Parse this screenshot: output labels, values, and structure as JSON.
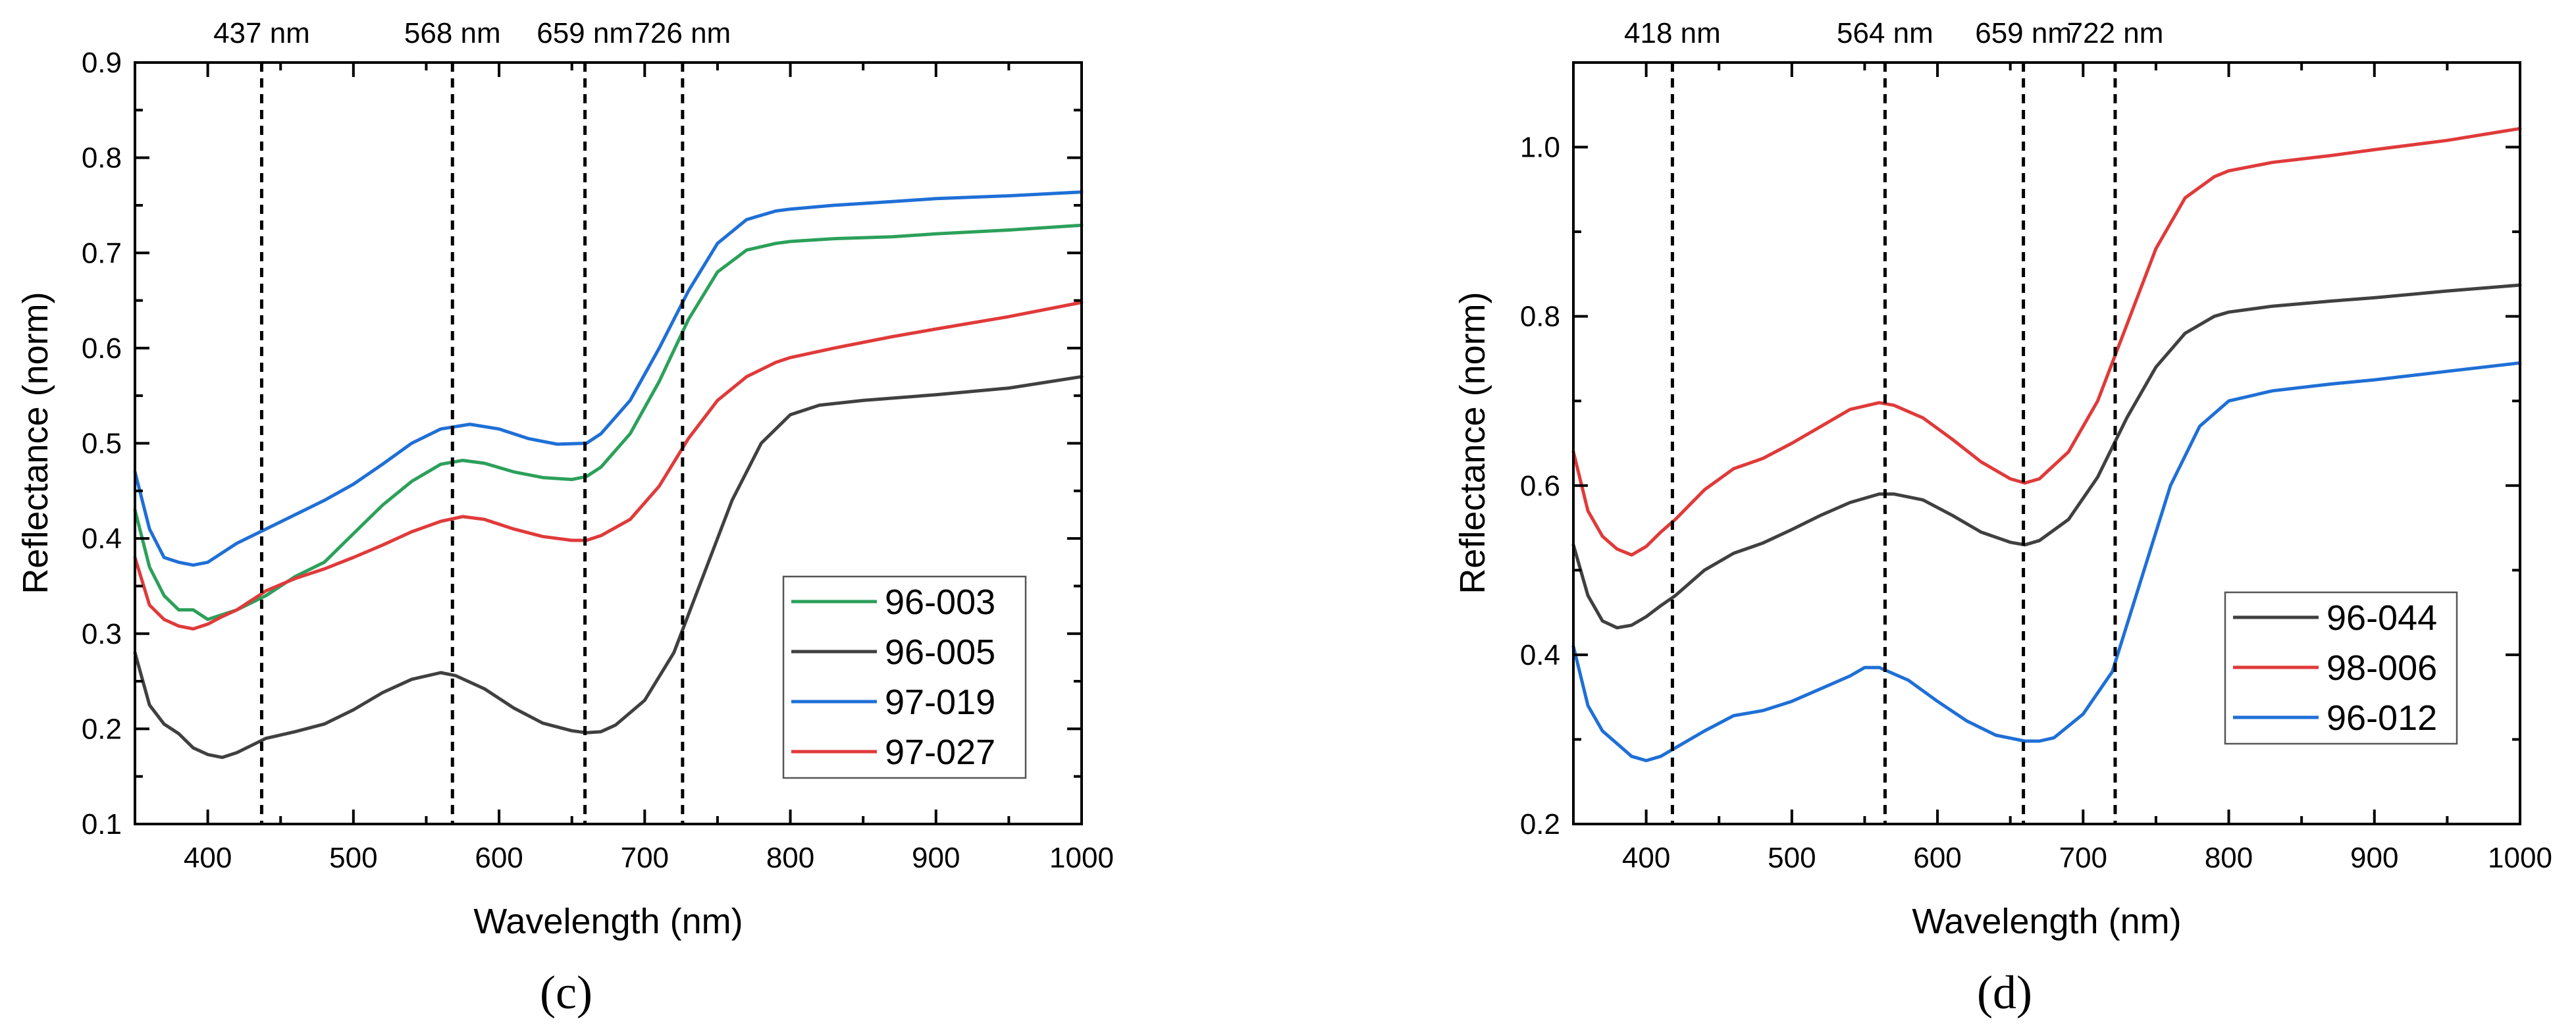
{
  "chart_data": [
    {
      "type": "line",
      "panel_label": "(c)",
      "xlabel": "Wavelength (nm)",
      "ylabel": "Reflectance (norm)",
      "xlim": [
        350,
        1000
      ],
      "ylim": [
        0.1,
        0.9
      ],
      "xticks": [
        400,
        500,
        600,
        700,
        800,
        900,
        1000
      ],
      "yticks": [
        0.1,
        0.2,
        0.3,
        0.4,
        0.5,
        0.6,
        0.7,
        0.8,
        0.9
      ],
      "ytick_labels": [
        "0.1",
        "0.2",
        "0.3",
        "0.4",
        "0.5",
        "0.6",
        "0.7",
        "0.8",
        "0.9"
      ],
      "legend_position": "bottom-right",
      "vertical_markers": [
        {
          "x": 437,
          "label": "437 nm"
        },
        {
          "x": 568,
          "label": "568 nm"
        },
        {
          "x": 659,
          "label": "659 nm"
        },
        {
          "x": 726,
          "label": "726 nm"
        }
      ],
      "series": [
        {
          "name": "96-003",
          "color": "#2ca05a",
          "x": [
            350,
            360,
            370,
            380,
            390,
            400,
            420,
            440,
            460,
            480,
            500,
            520,
            540,
            560,
            575,
            590,
            610,
            630,
            650,
            660,
            670,
            690,
            710,
            730,
            750,
            770,
            790,
            800,
            830,
            870,
            900,
            950,
            1000
          ],
          "y": [
            0.43,
            0.37,
            0.34,
            0.325,
            0.325,
            0.315,
            0.325,
            0.34,
            0.36,
            0.375,
            0.405,
            0.435,
            0.46,
            0.478,
            0.482,
            0.479,
            0.47,
            0.464,
            0.462,
            0.465,
            0.475,
            0.51,
            0.565,
            0.63,
            0.68,
            0.703,
            0.71,
            0.712,
            0.715,
            0.717,
            0.72,
            0.724,
            0.729
          ]
        },
        {
          "name": "96-005",
          "color": "#404040",
          "x": [
            350,
            360,
            370,
            380,
            390,
            400,
            410,
            420,
            440,
            460,
            480,
            500,
            520,
            540,
            560,
            570,
            590,
            610,
            630,
            650,
            660,
            670,
            680,
            700,
            720,
            740,
            760,
            780,
            800,
            820,
            850,
            900,
            950,
            1000
          ],
          "y": [
            0.28,
            0.225,
            0.205,
            0.195,
            0.18,
            0.173,
            0.17,
            0.175,
            0.19,
            0.197,
            0.205,
            0.22,
            0.238,
            0.252,
            0.259,
            0.256,
            0.242,
            0.222,
            0.206,
            0.198,
            0.196,
            0.197,
            0.204,
            0.23,
            0.28,
            0.36,
            0.44,
            0.5,
            0.53,
            0.54,
            0.545,
            0.551,
            0.558,
            0.57
          ]
        },
        {
          "name": "97-019",
          "color": "#1f6fd6",
          "x": [
            350,
            360,
            370,
            380,
            390,
            400,
            410,
            420,
            440,
            460,
            480,
            500,
            520,
            540,
            560,
            580,
            600,
            620,
            640,
            660,
            670,
            690,
            710,
            730,
            750,
            770,
            790,
            800,
            830,
            870,
            900,
            950,
            1000
          ],
          "y": [
            0.47,
            0.41,
            0.38,
            0.375,
            0.372,
            0.375,
            0.385,
            0.395,
            0.41,
            0.425,
            0.44,
            0.457,
            0.478,
            0.5,
            0.515,
            0.52,
            0.515,
            0.505,
            0.499,
            0.5,
            0.51,
            0.545,
            0.6,
            0.66,
            0.71,
            0.735,
            0.744,
            0.746,
            0.75,
            0.754,
            0.757,
            0.76,
            0.764
          ]
        },
        {
          "name": "97-027",
          "color": "#e03a3a",
          "x": [
            350,
            360,
            370,
            380,
            390,
            400,
            410,
            420,
            440,
            460,
            480,
            500,
            520,
            540,
            560,
            575,
            590,
            610,
            630,
            650,
            660,
            670,
            690,
            710,
            730,
            750,
            770,
            790,
            800,
            830,
            870,
            900,
            950,
            1000
          ],
          "y": [
            0.38,
            0.33,
            0.315,
            0.308,
            0.305,
            0.31,
            0.318,
            0.325,
            0.345,
            0.358,
            0.368,
            0.38,
            0.393,
            0.407,
            0.418,
            0.423,
            0.42,
            0.41,
            0.402,
            0.398,
            0.398,
            0.403,
            0.42,
            0.455,
            0.505,
            0.545,
            0.57,
            0.585,
            0.59,
            0.6,
            0.612,
            0.62,
            0.633,
            0.648
          ]
        }
      ]
    },
    {
      "type": "line",
      "panel_label": "(d)",
      "xlabel": "Wavelength (nm)",
      "ylabel": "Reflectance (norm)",
      "xlim": [
        350,
        1000
      ],
      "ylim": [
        0.2,
        1.1
      ],
      "xticks": [
        400,
        500,
        600,
        700,
        800,
        900,
        1000
      ],
      "yticks": [
        0.2,
        0.4,
        0.6,
        0.8,
        1.0
      ],
      "ytick_labels": [
        "0.2",
        "0.4",
        "0.6",
        "0.8",
        "1.0"
      ],
      "legend_position": "center-right",
      "vertical_markers": [
        {
          "x": 418,
          "label": "418 nm"
        },
        {
          "x": 564,
          "label": "564 nm"
        },
        {
          "x": 659,
          "label": "659 nm"
        },
        {
          "x": 722,
          "label": "722 nm"
        }
      ],
      "series": [
        {
          "name": "96-044",
          "color": "#404040",
          "x": [
            350,
            360,
            370,
            380,
            390,
            400,
            410,
            420,
            440,
            460,
            480,
            500,
            520,
            540,
            560,
            570,
            590,
            610,
            630,
            650,
            660,
            670,
            690,
            710,
            730,
            750,
            770,
            790,
            800,
            830,
            870,
            900,
            950,
            1000
          ],
          "y": [
            0.53,
            0.47,
            0.44,
            0.432,
            0.435,
            0.445,
            0.458,
            0.47,
            0.5,
            0.52,
            0.532,
            0.548,
            0.565,
            0.58,
            0.59,
            0.59,
            0.583,
            0.565,
            0.545,
            0.533,
            0.53,
            0.535,
            0.56,
            0.61,
            0.68,
            0.74,
            0.78,
            0.8,
            0.805,
            0.812,
            0.818,
            0.822,
            0.83,
            0.837
          ]
        },
        {
          "name": "98-006",
          "color": "#e03a3a",
          "x": [
            350,
            360,
            370,
            380,
            390,
            400,
            410,
            420,
            440,
            460,
            480,
            500,
            520,
            540,
            560,
            570,
            590,
            610,
            630,
            650,
            660,
            670,
            690,
            710,
            730,
            750,
            770,
            790,
            800,
            830,
            870,
            900,
            950,
            1000
          ],
          "y": [
            0.64,
            0.57,
            0.54,
            0.525,
            0.518,
            0.528,
            0.545,
            0.56,
            0.595,
            0.62,
            0.632,
            0.65,
            0.67,
            0.69,
            0.698,
            0.695,
            0.68,
            0.655,
            0.628,
            0.608,
            0.603,
            0.608,
            0.64,
            0.7,
            0.79,
            0.88,
            0.94,
            0.965,
            0.972,
            0.982,
            0.99,
            0.997,
            1.008,
            1.022
          ]
        },
        {
          "name": "96-012",
          "color": "#1f6fd6",
          "x": [
            350,
            360,
            370,
            380,
            390,
            400,
            410,
            420,
            440,
            460,
            480,
            500,
            520,
            540,
            550,
            560,
            580,
            600,
            620,
            640,
            660,
            670,
            680,
            700,
            720,
            740,
            760,
            780,
            800,
            830,
            870,
            900,
            950,
            1000
          ],
          "y": [
            0.41,
            0.34,
            0.31,
            0.295,
            0.28,
            0.275,
            0.28,
            0.29,
            0.31,
            0.328,
            0.334,
            0.345,
            0.36,
            0.375,
            0.385,
            0.385,
            0.37,
            0.345,
            0.322,
            0.305,
            0.298,
            0.298,
            0.302,
            0.33,
            0.38,
            0.49,
            0.6,
            0.67,
            0.7,
            0.712,
            0.72,
            0.725,
            0.735,
            0.745
          ]
        }
      ]
    }
  ]
}
